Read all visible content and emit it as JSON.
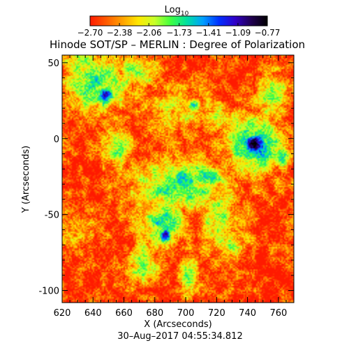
{
  "chart_data": {
    "type": "heatmap",
    "title": "Hinode SOT/SP – MERLIN : Degree of Polarization",
    "xlabel": "X (Arcseconds)",
    "ylabel": "Y (Arcseconds)",
    "timestamp": "30–Aug–2017 04:55:34.812",
    "xlim": [
      620,
      770
    ],
    "ylim": [
      -108,
      55
    ],
    "x_ticks": [
      620,
      640,
      660,
      680,
      700,
      720,
      740,
      760
    ],
    "y_ticks": [
      -100,
      -50,
      0,
      50
    ],
    "colorbar": {
      "title_base": "Log",
      "title_sub": "10",
      "range": [
        -2.7,
        -0.77
      ],
      "ticks": [
        -2.7,
        -2.38,
        -2.06,
        -1.73,
        -1.41,
        -1.09,
        -0.77
      ],
      "tick_labels": [
        "−2.70",
        "−2.38",
        "−2.06",
        "−1.73",
        "−1.41",
        "−1.09",
        "−0.77"
      ],
      "colors": [
        "#ff1a00",
        "#ff5a00",
        "#ffa000",
        "#ffe800",
        "#c8ff2a",
        "#40ff40",
        "#00e0a0",
        "#00a0ff",
        "#0030ff",
        "#3000c8",
        "#200050",
        "#000000"
      ]
    },
    "features": [
      {
        "x": 745,
        "y": -3,
        "sx": 6,
        "sy": 5,
        "peak": -0.85
      },
      {
        "x": 745,
        "y": -3,
        "sx": 13,
        "sy": 13,
        "peak": -1.55
      },
      {
        "x": 648,
        "y": 28,
        "sx": 4,
        "sy": 5,
        "peak": -1.2
      },
      {
        "x": 642,
        "y": 36,
        "sx": 14,
        "sy": 13,
        "peak": -1.75
      },
      {
        "x": 668,
        "y": 44,
        "sx": 9,
        "sy": 8,
        "peak": -1.95
      },
      {
        "x": 634,
        "y": 48,
        "sx": 10,
        "sy": 8,
        "peak": -2.0
      },
      {
        "x": 655,
        "y": -5,
        "sx": 6,
        "sy": 11,
        "peak": -1.9
      },
      {
        "x": 695,
        "y": -30,
        "sx": 22,
        "sy": 12,
        "peak": -1.75
      },
      {
        "x": 685,
        "y": -55,
        "sx": 11,
        "sy": 12,
        "peak": -1.8
      },
      {
        "x": 687,
        "y": -64,
        "sx": 3,
        "sy": 4,
        "peak": -1.25
      },
      {
        "x": 712,
        "y": -25,
        "sx": 8,
        "sy": 6,
        "peak": -1.5
      },
      {
        "x": 722,
        "y": -50,
        "sx": 9,
        "sy": 16,
        "peak": -1.95
      },
      {
        "x": 697,
        "y": 20,
        "sx": 16,
        "sy": 10,
        "peak": -2.15
      },
      {
        "x": 706,
        "y": 22,
        "sx": 3,
        "sy": 3,
        "peak": -1.5
      },
      {
        "x": 673,
        "y": -82,
        "sx": 7,
        "sy": 10,
        "peak": -1.95
      },
      {
        "x": 702,
        "y": -92,
        "sx": 4,
        "sy": 8,
        "peak": -1.7
      },
      {
        "x": 756,
        "y": 28,
        "sx": 8,
        "sy": 11,
        "peak": -2.0
      },
      {
        "x": 762,
        "y": -12,
        "sx": 4,
        "sy": 6,
        "peak": -1.75
      },
      {
        "x": 727,
        "y": -68,
        "sx": 8,
        "sy": 6,
        "peak": -1.95
      },
      {
        "x": 718,
        "y": 15,
        "sx": 7,
        "sy": 7,
        "peak": -2.1
      },
      {
        "x": 630,
        "y": -62,
        "sx": 9,
        "sy": 9,
        "peak": -2.15
      }
    ]
  }
}
